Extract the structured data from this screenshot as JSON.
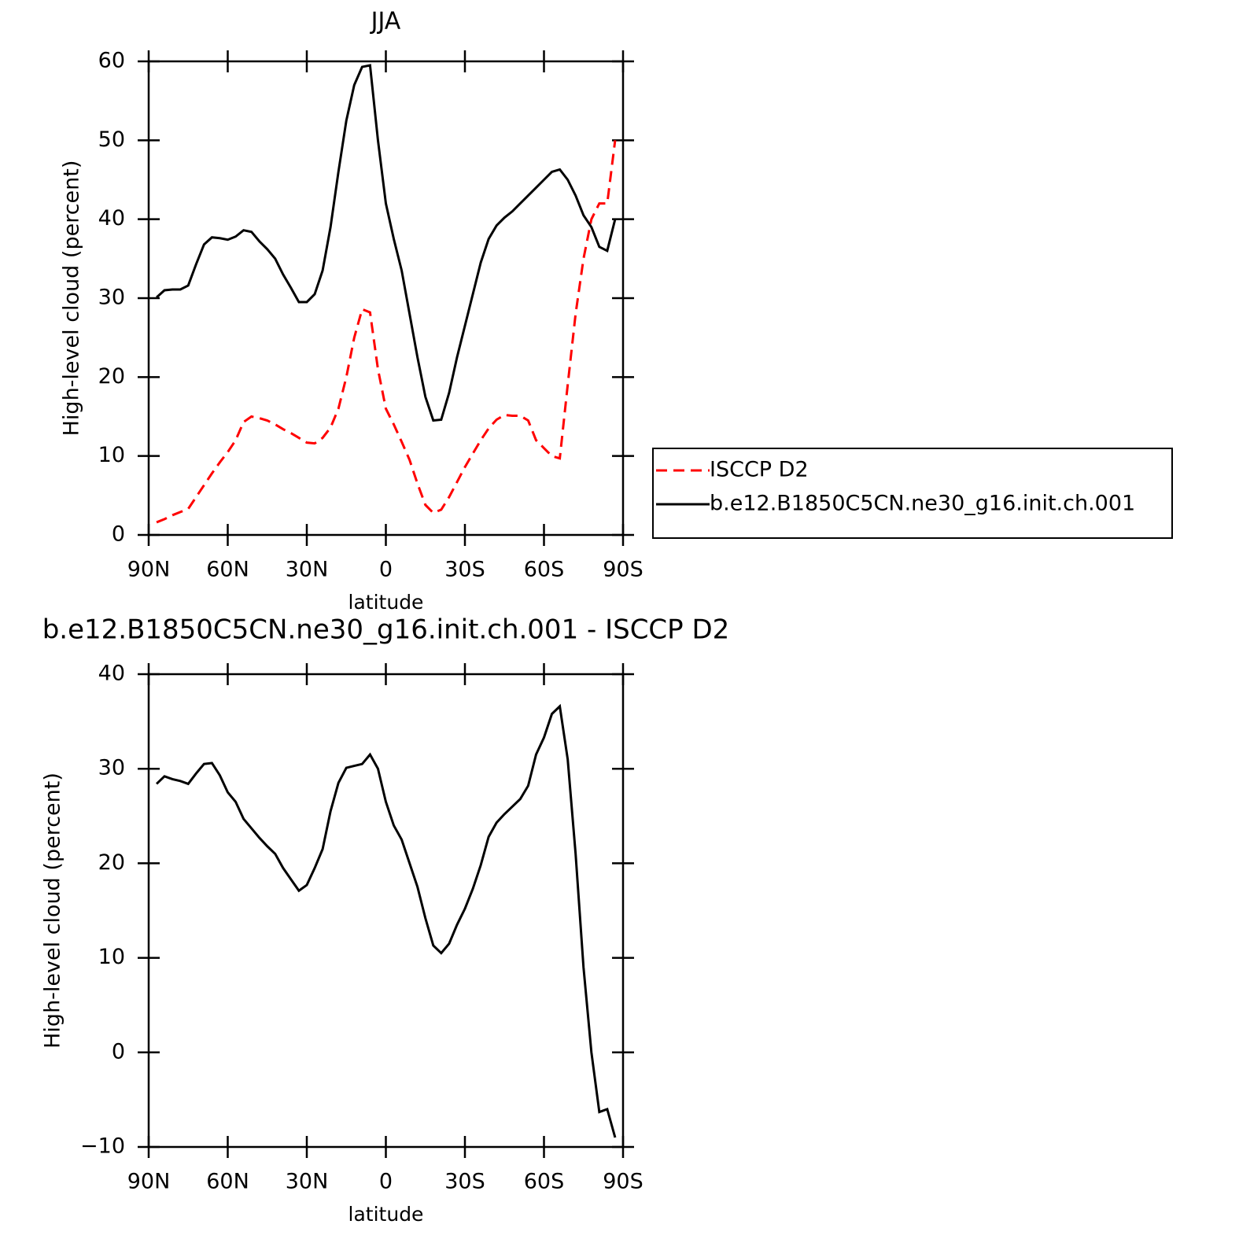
{
  "chart_data": [
    {
      "type": "line",
      "title": "JJA",
      "xlabel": "latitude",
      "ylabel": "High-level cloud (percent)",
      "legend": "outside-right",
      "xlim": [
        90,
        -90
      ],
      "ylim": [
        0,
        60
      ],
      "xticks": [
        {
          "value": 90,
          "label": "90N"
        },
        {
          "value": 60,
          "label": "60N"
        },
        {
          "value": 30,
          "label": "30N"
        },
        0,
        {
          "value": -30,
          "label": "30S"
        },
        {
          "value": -60,
          "label": "60S"
        },
        {
          "value": -90,
          "label": "90S"
        }
      ],
      "yticks": [
        0,
        10,
        20,
        30,
        40,
        50,
        60
      ],
      "x": [
        87,
        84,
        81,
        78,
        75,
        72,
        69,
        66,
        63,
        60,
        57,
        54,
        51,
        48,
        45,
        42,
        39,
        36,
        33,
        30,
        27,
        24,
        21,
        18,
        15,
        12,
        9,
        6,
        3,
        0,
        -3,
        -6,
        -9,
        -12,
        -15,
        -18,
        -21,
        -24,
        -27,
        -30,
        -33,
        -36,
        -39,
        -42,
        -45,
        -48,
        -51,
        -54,
        -57,
        -60,
        -63,
        -66,
        -69,
        -72,
        -75,
        -78,
        -81,
        -84,
        -87
      ],
      "series": [
        {
          "name": "ISCCP D2",
          "color": "#ff0000",
          "style": "dashed",
          "values": [
            1.6,
            2.0,
            2.5,
            2.9,
            3.3,
            4.8,
            6.3,
            7.8,
            9.2,
            10.5,
            12.0,
            14.3,
            15.0,
            14.8,
            14.5,
            14.0,
            13.4,
            12.9,
            12.3,
            11.7,
            11.6,
            12.3,
            13.6,
            16,
            20,
            25,
            28.6,
            28.2,
            21,
            16,
            14,
            11.8,
            9.5,
            6.5,
            3.8,
            2.8,
            3.2,
            4.8,
            6.7,
            8.6,
            10.3,
            12.0,
            13.5,
            14.6,
            15.2,
            15.1,
            15.1,
            14.5,
            12.0,
            11.0,
            10.0,
            9.7,
            19,
            28,
            35,
            40,
            42,
            42,
            50
          ]
        },
        {
          "name": "b.e12.B1850C5CN.ne30_g16.init.ch.001",
          "color": "#000000",
          "style": "solid",
          "values": [
            30.1,
            31.0,
            31.1,
            31.1,
            31.6,
            34.3,
            36.8,
            37.7,
            37.6,
            37.4,
            37.8,
            38.6,
            38.4,
            37.2,
            36.2,
            35.0,
            33.0,
            31.3,
            29.5,
            29.5,
            30.5,
            33.5,
            39,
            46,
            52.5,
            57,
            59.3,
            59.5,
            50,
            42,
            37.5,
            33.5,
            28,
            22.5,
            17.5,
            14.5,
            14.6,
            18,
            22.5,
            26.5,
            30.5,
            34.5,
            37.5,
            39.2,
            40.2,
            41.0,
            42.0,
            43.0,
            44.0,
            45.0,
            46.0,
            46.3,
            45.0,
            43,
            40.5,
            39,
            36.5,
            36,
            40
          ]
        }
      ]
    },
    {
      "type": "line",
      "title": "b.e12.B1850C5CN.ne30_g16.init.ch.001 - ISCCP D2",
      "xlabel": "latitude",
      "ylabel": "High-level cloud (percent)",
      "xlim": [
        90,
        -90
      ],
      "ylim": [
        -10,
        40
      ],
      "xticks": [
        {
          "value": 90,
          "label": "90N"
        },
        {
          "value": 60,
          "label": "60N"
        },
        {
          "value": 30,
          "label": "30N"
        },
        0,
        {
          "value": -30,
          "label": "30S"
        },
        {
          "value": -60,
          "label": "60S"
        },
        {
          "value": -90,
          "label": "90S"
        }
      ],
      "yticks": [
        {
          "value": -10,
          "label": "−10"
        },
        0,
        10,
        20,
        30,
        40
      ],
      "x": [
        87,
        84,
        81,
        78,
        75,
        72,
        69,
        66,
        63,
        60,
        57,
        54,
        51,
        48,
        45,
        42,
        39,
        36,
        33,
        30,
        27,
        24,
        21,
        18,
        15,
        12,
        9,
        6,
        3,
        0,
        -3,
        -6,
        -9,
        -12,
        -15,
        -18,
        -21,
        -24,
        -27,
        -30,
        -33,
        -36,
        -39,
        -42,
        -45,
        -48,
        -51,
        -54,
        -57,
        -60,
        -63,
        -66,
        -69,
        -72,
        -75,
        -78,
        -81,
        -84,
        -87
      ],
      "series": [
        {
          "color": "#000000",
          "style": "solid",
          "values": [
            28.4,
            29.2,
            28.9,
            28.7,
            28.4,
            29.5,
            30.5,
            30.6,
            29.3,
            27.5,
            26.5,
            24.7,
            23.7,
            22.7,
            21.8,
            21.0,
            19.5,
            18.3,
            17.1,
            17.7,
            19.5,
            21.5,
            25.5,
            28.5,
            30.1,
            30.3,
            30.5,
            31.5,
            30.0,
            26.5,
            24.0,
            22.5,
            20,
            17.5,
            14.2,
            11.3,
            10.5,
            11.5,
            13.5,
            15.2,
            17.3,
            19.8,
            22.8,
            24.3,
            25.2,
            26.0,
            26.8,
            28.2,
            31.5,
            33.3,
            35.8,
            36.6,
            31.0,
            21,
            9,
            0,
            -6.3,
            -6.0,
            -9
          ]
        }
      ]
    }
  ]
}
